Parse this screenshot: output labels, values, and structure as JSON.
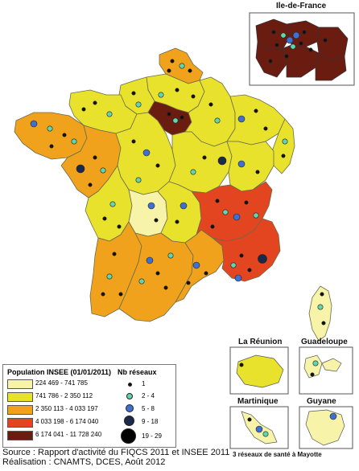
{
  "idf_title": "Ile-de-France",
  "inset_titles": {
    "reunion": "La Réunion",
    "guadeloupe": "Guadeloupe",
    "martinique": "Martinique",
    "guyane": "Guyane"
  },
  "mayotte_note": "3 réseaux de santé à Mayotte",
  "legend": {
    "population_title": "Population INSEE (01/01/2011)",
    "classes": [
      {
        "label": "224 469 - 741 785",
        "color": "#f7f3a8"
      },
      {
        "label": "741 786 - 2 350 112",
        "color": "#e8e22c"
      },
      {
        "label": "2 350 113 - 4 033 197",
        "color": "#f0a21c"
      },
      {
        "label": "4 033 198 - 6 174 040",
        "color": "#e2451f"
      },
      {
        "label": "6 174 041 - 11 728 240",
        "color": "#6b1c10"
      }
    ],
    "nb_title": "Nb réseaux",
    "nb_classes": [
      {
        "label": "1",
        "color": "#111111"
      },
      {
        "label": "2 - 4",
        "color": "#5fd6b0"
      },
      {
        "label": "5 - 8",
        "color": "#3f6fd0"
      },
      {
        "label": "9 - 18",
        "color": "#1b2a4a"
      },
      {
        "label": "19 - 29",
        "color": "#000000"
      }
    ]
  },
  "source_line": "Source : Rapport d'activité du FIQCS 2011 et INSEE 2011",
  "realisation_line": "Réalisation : CNAMTS, DCES, Août 2012"
}
